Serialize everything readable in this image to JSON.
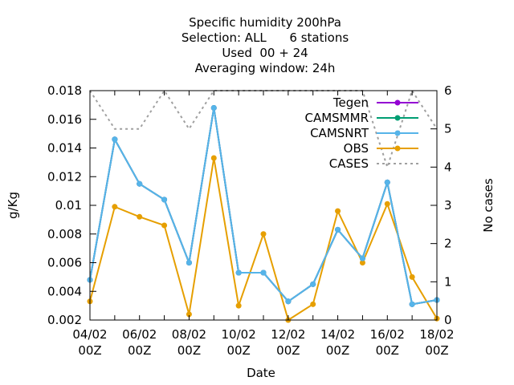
{
  "chart_data": {
    "type": "line",
    "title": [
      "Specific humidity 200hPa",
      "Selection: ALL      6 stations",
      "Used  00 + 24",
      "Averaging window: 24h"
    ],
    "xlabel": "Date",
    "ylabel": "g/Kg",
    "y2label": "No cases",
    "x": [
      0,
      1,
      2,
      3,
      4,
      5,
      6,
      7,
      8,
      9,
      10,
      11,
      12,
      13,
      14
    ],
    "xticks": [
      {
        "x": 0,
        "line1": "04/02",
        "line2": "00Z"
      },
      {
        "x": 2,
        "line1": "06/02",
        "line2": "00Z"
      },
      {
        "x": 4,
        "line1": "08/02",
        "line2": "00Z"
      },
      {
        "x": 6,
        "line1": "10/02",
        "line2": "00Z"
      },
      {
        "x": 8,
        "line1": "12/02",
        "line2": "00Z"
      },
      {
        "x": 10,
        "line1": "14/02",
        "line2": "00Z"
      },
      {
        "x": 12,
        "line1": "16/02",
        "line2": "00Z"
      },
      {
        "x": 14,
        "line1": "18/02",
        "line2": "00Z"
      }
    ],
    "xlim": [
      0,
      14
    ],
    "ylim": [
      0.002,
      0.018
    ],
    "yticks": [
      "0.002",
      "0.004",
      "0.006",
      "0.008",
      "0.01",
      "0.012",
      "0.014",
      "0.016",
      "0.018"
    ],
    "y2lim": [
      0,
      6
    ],
    "y2ticks": [
      "0",
      "1",
      "2",
      "3",
      "4",
      "5",
      "6"
    ],
    "legend_position": "top-right",
    "series": [
      {
        "name": "Tegen",
        "axis": "y",
        "color": "#9400d3",
        "style": "line-point",
        "values": [
          0.0048,
          0.0146,
          0.0115,
          0.0104,
          0.006,
          0.0168,
          0.0053,
          0.0053,
          0.0033,
          0.0045,
          0.0083,
          0.0063,
          0.0116,
          0.0031,
          0.0034
        ]
      },
      {
        "name": "CAMSMMR",
        "axis": "y",
        "color": "#009e73",
        "style": "line-point",
        "values": [
          0.0048,
          0.0146,
          0.0115,
          0.0104,
          0.006,
          0.0168,
          0.0053,
          0.0053,
          0.0033,
          0.0045,
          0.0083,
          0.0063,
          0.0116,
          0.0031,
          0.0034
        ]
      },
      {
        "name": "CAMSNRT",
        "axis": "y",
        "color": "#56b4e9",
        "style": "line-point",
        "values": [
          0.0048,
          0.0146,
          0.0115,
          0.0104,
          0.006,
          0.0168,
          0.0053,
          0.0053,
          0.0033,
          0.0045,
          0.0083,
          0.0063,
          0.0116,
          0.0031,
          0.0034
        ]
      },
      {
        "name": "OBS",
        "axis": "y",
        "color": "#e69f00",
        "style": "line-point",
        "values": [
          0.0033,
          0.0099,
          0.0092,
          0.0086,
          0.0024,
          0.0133,
          0.003,
          0.008,
          0.002,
          0.0031,
          0.0096,
          0.006,
          0.0101,
          0.005,
          0.0021
        ]
      },
      {
        "name": "CASES",
        "axis": "y2",
        "color": "#a0a0a0",
        "style": "dashed",
        "values": [
          6,
          5,
          5,
          6,
          5,
          6,
          6,
          6,
          6,
          6,
          6,
          6,
          4,
          6,
          5
        ]
      }
    ]
  }
}
